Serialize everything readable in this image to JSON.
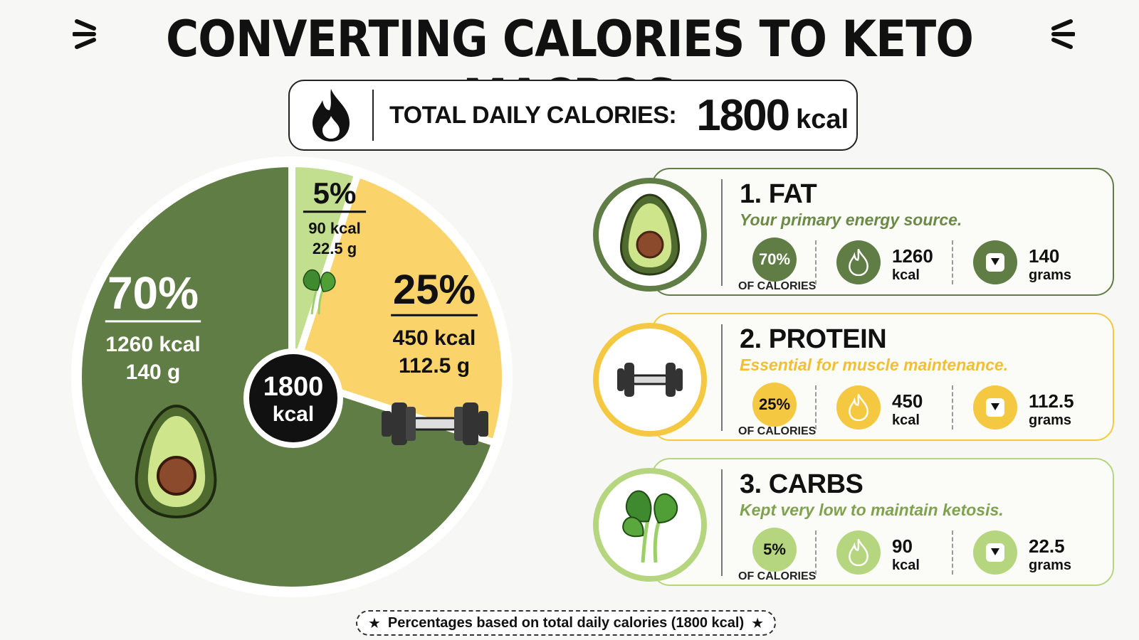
{
  "title": "CONVERTING CALORIES TO KETO MACROS",
  "total": {
    "label": "TOTAL DAILY CALORIES:",
    "value": "1800",
    "unit": "kcal",
    "icon": "flame-icon"
  },
  "chart_data": {
    "type": "pie",
    "center_value": "1800",
    "center_unit": "kcal",
    "slices": [
      {
        "name": "Fat",
        "percent": 70,
        "pct_label": "70%",
        "kcal": 1260,
        "kcal_label": "1260 kcal",
        "grams_label": "140 g",
        "color": "#5f7d45",
        "text_color": "#ffffff",
        "icon": "avocado-icon"
      },
      {
        "name": "Carbs",
        "percent": 5,
        "pct_label": "5%",
        "kcal": 90,
        "kcal_label": "90 kcal",
        "grams_label": "22.5 g",
        "color": "#c2df8f",
        "text_color": "#111111",
        "icon": "spinach-icon"
      },
      {
        "name": "Protein",
        "percent": 25,
        "pct_label": "25%",
        "kcal": 450,
        "kcal_label": "450 kcal",
        "grams_label": "112.5 g",
        "color": "#fad46a",
        "text_color": "#111111",
        "icon": "dumbbell-icon"
      }
    ]
  },
  "cards": [
    {
      "name": "1. FAT",
      "desc": "Your primary energy source.",
      "pct": "70%",
      "pct_label": "OF CALORIES",
      "kcal": "1260",
      "kcal_unit": "kcal",
      "grams": "140",
      "grams_unit": "grams",
      "accent": "#5f7d45",
      "desc_color": "#6b8a46",
      "icon": "avocado-icon"
    },
    {
      "name": "2. PROTEIN",
      "desc": "Essential for muscle maintenance.",
      "pct": "25%",
      "pct_label": "OF CALORIES",
      "kcal": "450",
      "kcal_unit": "kcal",
      "grams": "112.5",
      "grams_unit": "grams",
      "accent": "#f5c842",
      "desc_color": "#f0bf36",
      "icon": "dumbbell-icon"
    },
    {
      "name": "3. CARBS",
      "desc": "Kept very low to maintain ketosis.",
      "pct": "5%",
      "pct_label": "OF CALORIES",
      "kcal": "90",
      "kcal_unit": "kcal",
      "grams": "22.5",
      "grams_unit": "grams",
      "accent": "#b5d67f",
      "desc_color": "#7fa24f",
      "icon": "spinach-icon"
    }
  ],
  "footnote": "Percentages based on total daily calories (1800 kcal)"
}
